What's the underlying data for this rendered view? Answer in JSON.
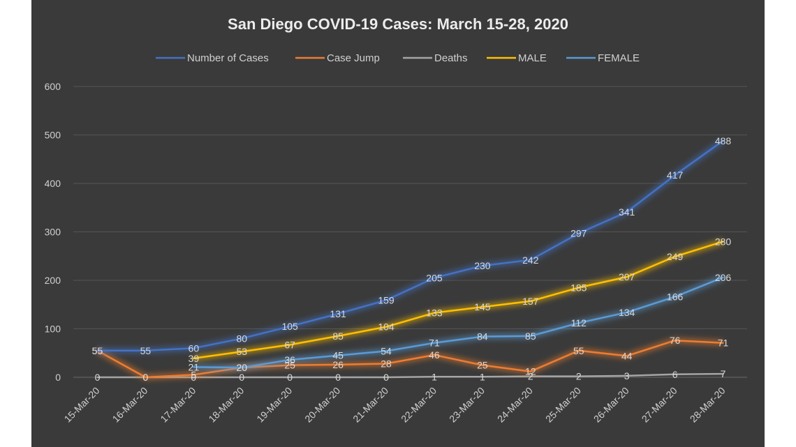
{
  "chart_data": {
    "type": "line",
    "title": "San Diego COVID-19 Cases: March 15-28, 2020",
    "xlabel": "",
    "ylabel": "",
    "ylim": [
      0,
      600
    ],
    "yticks": [
      0,
      100,
      200,
      300,
      400,
      500,
      600
    ],
    "grid": true,
    "legend_position": "top",
    "categories": [
      "15-Mar-20",
      "16-Mar-20",
      "17-Mar-20",
      "18-Mar-20",
      "19-Mar-20",
      "20-Mar-20",
      "21-Mar-20",
      "22-Mar-20",
      "23-Mar-20",
      "24-Mar-20",
      "25-Mar-20",
      "26-Mar-20",
      "27-Mar-20",
      "28-Mar-20"
    ],
    "series": [
      {
        "name": "Number of Cases",
        "color": "#4472c4",
        "values": [
          55,
          55,
          60,
          80,
          105,
          131,
          159,
          205,
          230,
          242,
          297,
          341,
          417,
          488
        ]
      },
      {
        "name": "Case Jump",
        "color": "#ed7d31",
        "values": [
          55,
          0,
          5,
          20,
          25,
          26,
          28,
          46,
          25,
          12,
          55,
          44,
          76,
          71
        ]
      },
      {
        "name": "Deaths",
        "color": "#a5a5a5",
        "values": [
          0,
          0,
          0,
          0,
          0,
          0,
          0,
          1,
          1,
          2,
          2,
          3,
          6,
          7
        ]
      },
      {
        "name": "MALE",
        "color": "#ffc000",
        "values": [
          null,
          null,
          39,
          53,
          67,
          85,
          104,
          133,
          145,
          157,
          185,
          207,
          249,
          280
        ]
      },
      {
        "name": "FEMALE",
        "color": "#5b9bd5",
        "values": [
          null,
          null,
          21,
          20,
          36,
          45,
          54,
          71,
          84,
          85,
          112,
          134,
          166,
          206
        ]
      }
    ]
  }
}
